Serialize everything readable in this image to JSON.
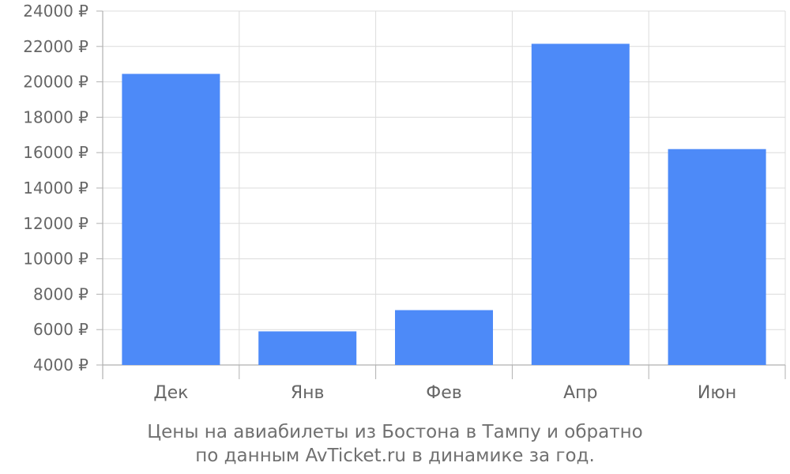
{
  "chart_data": {
    "type": "bar",
    "categories": [
      "Дек",
      "Янв",
      "Фев",
      "Апр",
      "Июн"
    ],
    "values": [
      20450,
      5900,
      7100,
      22150,
      16200
    ],
    "ylim": [
      4000,
      24000
    ],
    "yticks": [
      4000,
      6000,
      8000,
      10000,
      12000,
      14000,
      16000,
      18000,
      20000,
      22000,
      24000
    ],
    "ytick_suffix": " ₽",
    "grid": true,
    "legend": "none"
  },
  "caption": {
    "line1": "Цены на авиабилеты из Бостона в Тампу и обратно",
    "line2": "по данным AvTicket.ru в динамике за год."
  },
  "colors": {
    "bar": "#4d8af8",
    "grid": "#dcdcdc",
    "axis": "#b0b0b0",
    "text": "#666666"
  }
}
